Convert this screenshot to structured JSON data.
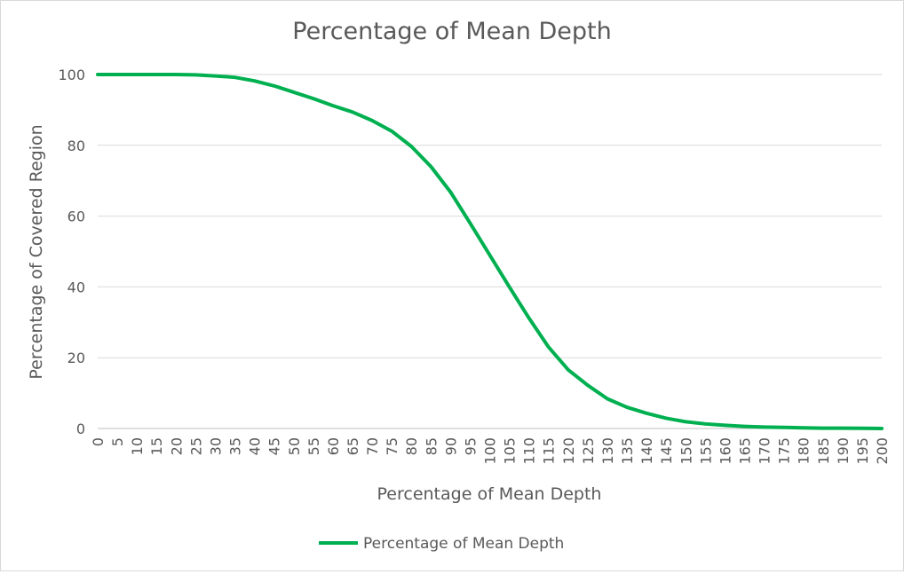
{
  "chart_data": {
    "type": "line",
    "title": "Percentage of Mean Depth",
    "xlabel": "Percentage of Mean Depth",
    "ylabel": "Percentage of Covered Region",
    "xlim": [
      0,
      200
    ],
    "ylim": [
      0,
      100
    ],
    "x_ticks": [
      "0",
      "5",
      "10",
      "15",
      "20",
      "25",
      "30",
      "35",
      "40",
      "45",
      "50",
      "55",
      "60",
      "65",
      "70",
      "75",
      "80",
      "85",
      "90",
      "95",
      "100",
      "105",
      "110",
      "115",
      "120",
      "125",
      "130",
      "135",
      "140",
      "145",
      "150",
      "155",
      "160",
      "165",
      "170",
      "175",
      "180",
      "185",
      "190",
      "195",
      "200"
    ],
    "y_ticks": [
      "0",
      "20",
      "40",
      "60",
      "80",
      "100"
    ],
    "grid": true,
    "legend": "bottom",
    "series": [
      {
        "name": "Percentage of Mean Depth",
        "color": "#00b050",
        "x": [
          0,
          5,
          10,
          15,
          20,
          25,
          30,
          35,
          40,
          45,
          50,
          55,
          60,
          65,
          70,
          75,
          80,
          85,
          90,
          95,
          100,
          105,
          110,
          115,
          120,
          125,
          130,
          135,
          140,
          145,
          150,
          155,
          160,
          165,
          170,
          175,
          180,
          185,
          190,
          195,
          200
        ],
        "values": [
          100,
          100,
          100,
          100,
          100,
          99.9,
          99.6,
          99.2,
          98.2,
          96.8,
          95,
          93.2,
          91.2,
          89.4,
          87,
          84,
          79.7,
          74,
          66.8,
          58,
          49,
          40,
          31.2,
          23,
          16.6,
          12.2,
          8.4,
          6,
          4.3,
          2.9,
          1.9,
          1.3,
          0.9,
          0.6,
          0.4,
          0.3,
          0.2,
          0.1,
          0.1,
          0.05,
          0
        ]
      }
    ]
  }
}
